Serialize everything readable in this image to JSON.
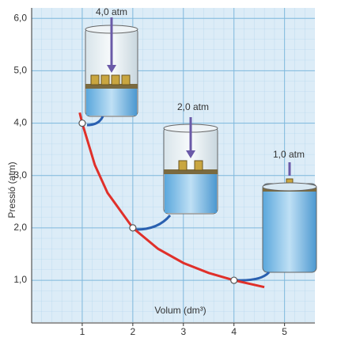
{
  "chart_data": {
    "type": "line",
    "x_label": "Volum (dm³)",
    "y_label": "Pressió (atm)",
    "xlim": [
      0,
      5.6
    ],
    "ylim": [
      0.2,
      6.2
    ],
    "xticks": [
      1,
      2,
      3,
      4,
      5
    ],
    "yticks": [
      {
        "value": 1,
        "label": "1,0"
      },
      {
        "value": 2,
        "label": "2,0"
      },
      {
        "value": 3,
        "label": "3,0"
      },
      {
        "value": 4,
        "label": "4,0"
      },
      {
        "value": 5,
        "label": "5,0"
      },
      {
        "value": 6,
        "label": "6,0"
      }
    ],
    "grid": true,
    "curve": {
      "color": "#e0302a",
      "x": [
        0.95,
        1,
        1.25,
        1.5,
        2,
        2.5,
        3,
        3.5,
        4,
        4.6
      ],
      "values": [
        4.2,
        4,
        3.2,
        2.67,
        2,
        1.6,
        1.33,
        1.14,
        1,
        0.87
      ]
    },
    "points": {
      "x": [
        1,
        2,
        4
      ],
      "values": [
        4,
        2,
        1
      ]
    },
    "annotations": [
      "4,0 atm",
      "2,0 atm",
      "1,0 atm"
    ]
  }
}
